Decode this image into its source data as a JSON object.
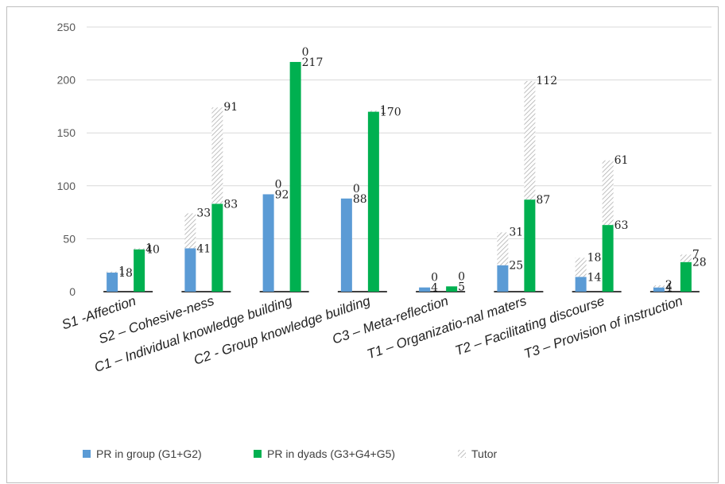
{
  "chart_data": {
    "type": "bar",
    "title": "",
    "xlabel": "",
    "ylabel": "",
    "ylim": [
      0,
      250
    ],
    "yticks": [
      0,
      50,
      100,
      150,
      200,
      250
    ],
    "grid": true,
    "legend_position": "bottom-left",
    "categories": [
      "S1 -Affection",
      "S2 – Cohesive-ness",
      "C1 – Individual knowledge building",
      "C2 - Group knowledge building",
      "C3 – Meta-reflection",
      "T1 – Organizatio-nal maters",
      "T2 – Facilitating discourse",
      "T3 – Provision of instruction"
    ],
    "series": [
      {
        "name": "PR in group (G1+G2)",
        "color": "#5b9bd5",
        "values": [
          18,
          41,
          92,
          88,
          4,
          25,
          14,
          4
        ],
        "tutor_stack": [
          1,
          33,
          0,
          0,
          0,
          31,
          18,
          2
        ]
      },
      {
        "name": "PR in dyads (G3+G4+G5)",
        "color": "#00b050",
        "values": [
          40,
          83,
          217,
          170,
          5,
          87,
          63,
          28
        ],
        "tutor_stack": [
          1,
          91,
          0,
          1,
          0,
          112,
          61,
          7
        ]
      },
      {
        "name": "Tutor",
        "pattern": "diagonal-hatch"
      }
    ]
  }
}
